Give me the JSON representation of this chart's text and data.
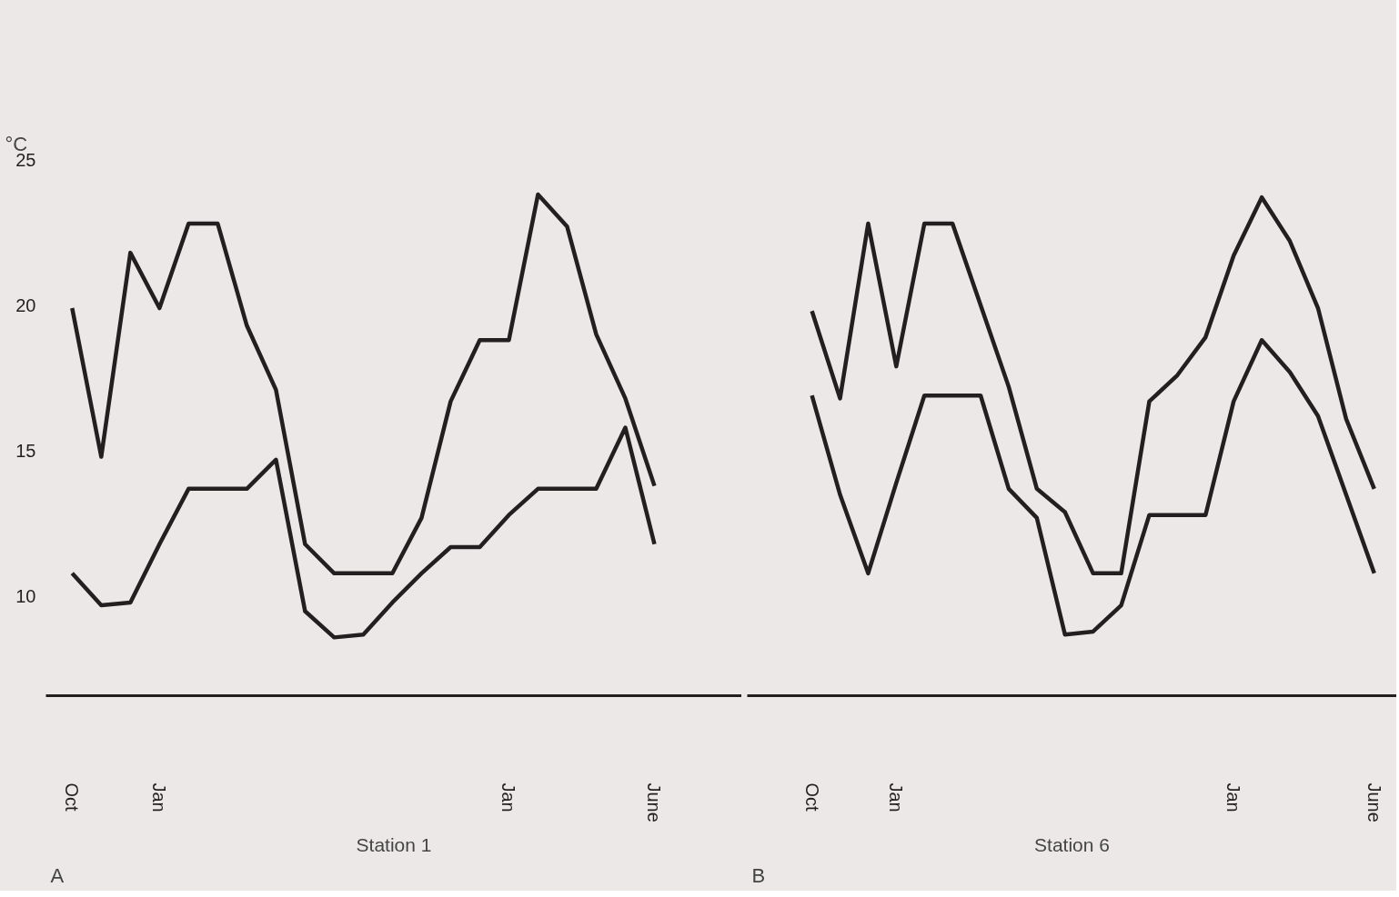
{
  "chart_data": [
    {
      "type": "line",
      "ylabel": "°C",
      "xlabel": "Station 1",
      "annotations": [
        "A"
      ],
      "ylim": [
        6.6,
        25
      ],
      "yticks": [
        10,
        15,
        20,
        25
      ],
      "grid": false,
      "categories": [
        "Oct",
        null,
        null,
        "Jan",
        null,
        null,
        null,
        null,
        null,
        null,
        null,
        null,
        null,
        null,
        null,
        "Jan",
        null,
        null,
        null,
        null,
        "June"
      ],
      "series": [
        {
          "color": "#231f20",
          "values": [
            19.9,
            14.8,
            21.8,
            19.9,
            22.8,
            22.8,
            19.3,
            17.1,
            11.8,
            10.8,
            10.8,
            10.8,
            12.7,
            16.7,
            18.8,
            18.8,
            23.8,
            22.7,
            19.0,
            16.8,
            13.8
          ]
        },
        {
          "color": "#231f20",
          "values": [
            10.8,
            9.7,
            9.8,
            11.8,
            13.7,
            13.7,
            13.7,
            14.7,
            9.5,
            8.6,
            8.7,
            9.8,
            10.8,
            11.7,
            11.7,
            12.8,
            13.7,
            13.7,
            13.7,
            15.8,
            11.8
          ]
        }
      ]
    },
    {
      "type": "line",
      "xlabel": "Station 6",
      "annotations": [
        "B"
      ],
      "tick_labels": "x",
      "ylim": [
        6.6,
        25
      ],
      "yticks": [
        10,
        15,
        20,
        25
      ],
      "grid": false,
      "categories": [
        "Oct",
        null,
        null,
        "Jan",
        null,
        null,
        null,
        null,
        null,
        null,
        null,
        null,
        null,
        null,
        null,
        "Jan",
        null,
        null,
        null,
        null,
        "June"
      ],
      "series": [
        {
          "color": "#231f20",
          "values": [
            19.8,
            16.8,
            22.8,
            17.9,
            22.8,
            22.8,
            20.0,
            17.2,
            13.7,
            12.9,
            10.8,
            10.8,
            16.7,
            17.6,
            18.9,
            21.7,
            23.7,
            22.2,
            19.9,
            16.1,
            13.7
          ]
        },
        {
          "color": "#231f20",
          "values": [
            16.9,
            13.5,
            10.8,
            13.9,
            16.9,
            16.9,
            16.9,
            13.7,
            12.7,
            8.7,
            8.8,
            9.7,
            12.8,
            12.8,
            12.8,
            16.7,
            18.8,
            17.7,
            16.2,
            13.5,
            10.8
          ]
        }
      ]
    }
  ]
}
